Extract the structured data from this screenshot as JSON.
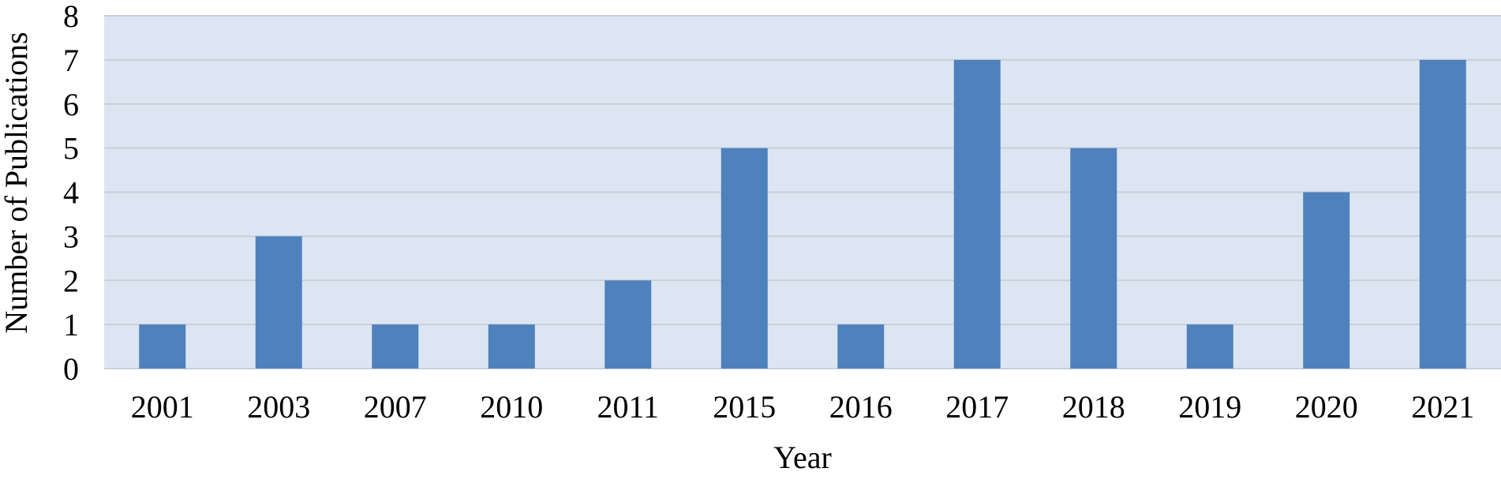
{
  "chart_data": {
    "type": "bar",
    "title": "",
    "xlabel": "Year",
    "ylabel": "Number of Publications",
    "categories": [
      "2001",
      "2003",
      "2007",
      "2010",
      "2011",
      "2015",
      "2016",
      "2017",
      "2018",
      "2019",
      "2020",
      "2021"
    ],
    "values": [
      1,
      3,
      1,
      1,
      2,
      5,
      1,
      7,
      5,
      1,
      4,
      7
    ],
    "ylim": [
      0,
      8
    ],
    "yticks": [
      0,
      1,
      2,
      3,
      4,
      5,
      6,
      7,
      8
    ],
    "grid": true,
    "legend": "none",
    "colors": {
      "bar": "#4f81bd",
      "plot_background": "#dce6f2",
      "gridline": "#c8cfd8",
      "text": "#000000"
    }
  }
}
